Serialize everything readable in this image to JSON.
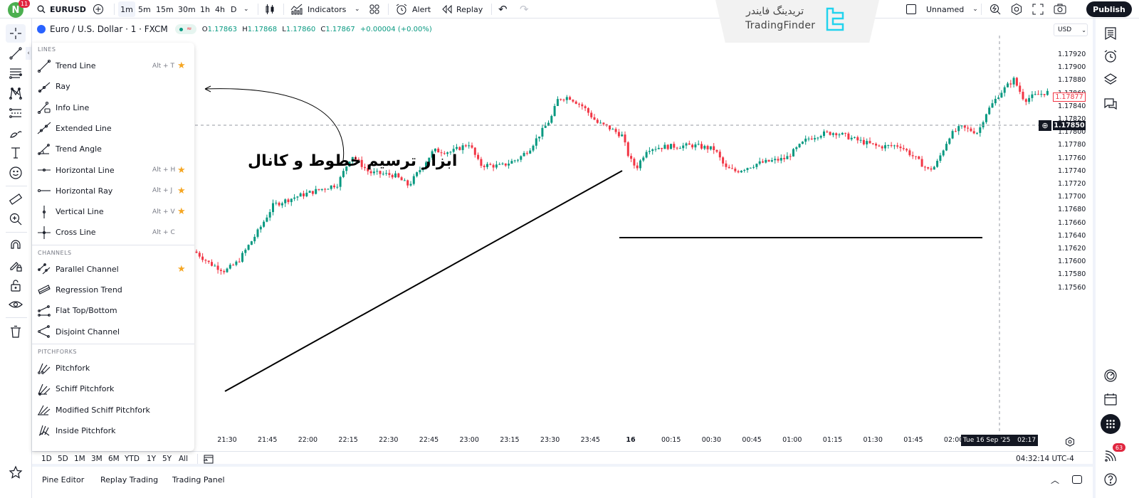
{
  "topbar": {
    "avatar_letter": "N",
    "avatar_badge": "11",
    "symbol": "EURUSD",
    "timeframes": [
      "1m",
      "5m",
      "15m",
      "30m",
      "1h",
      "4h",
      "D"
    ],
    "active_timeframe": "1m",
    "indicators_label": "Indicators",
    "alert_label": "Alert",
    "replay_label": "Replay",
    "layout_name": "Unnamed",
    "publish_label": "Publish"
  },
  "watermark": {
    "text_fa": "تریدینگ فایندر",
    "text_en": "TradingFinder"
  },
  "legend": {
    "symbol_desc": "Euro / U.S. Dollar · 1 · FXCM",
    "open_label": "O",
    "open": "1.17863",
    "high_label": "H",
    "high": "1.17868",
    "low_label": "L",
    "low": "1.17860",
    "close_label": "C",
    "close": "1.17867",
    "change": "+0.00004 (+0.00%)"
  },
  "drawing_menu": {
    "sections": [
      {
        "title": "LINES",
        "items": [
          {
            "label": "Trend Line",
            "shortcut": "Alt + T",
            "starred": true,
            "icon": "trend-line-icon"
          },
          {
            "label": "Ray",
            "shortcut": "",
            "starred": false,
            "icon": "ray-icon"
          },
          {
            "label": "Info Line",
            "shortcut": "",
            "starred": false,
            "icon": "info-line-icon"
          },
          {
            "label": "Extended Line",
            "shortcut": "",
            "starred": false,
            "icon": "extended-line-icon"
          },
          {
            "label": "Trend Angle",
            "shortcut": "",
            "starred": false,
            "icon": "trend-angle-icon"
          },
          {
            "label": "Horizontal Line",
            "shortcut": "Alt + H",
            "starred": true,
            "icon": "horizontal-line-icon"
          },
          {
            "label": "Horizontal Ray",
            "shortcut": "Alt + J",
            "starred": true,
            "icon": "horizontal-ray-icon"
          },
          {
            "label": "Vertical Line",
            "shortcut": "Alt + V",
            "starred": true,
            "icon": "vertical-line-icon"
          },
          {
            "label": "Cross Line",
            "shortcut": "Alt + C",
            "starred": false,
            "icon": "cross-line-icon"
          }
        ]
      },
      {
        "title": "CHANNELS",
        "items": [
          {
            "label": "Parallel Channel",
            "shortcut": "",
            "starred": true,
            "icon": "parallel-channel-icon"
          },
          {
            "label": "Regression Trend",
            "shortcut": "",
            "starred": false,
            "icon": "regression-trend-icon"
          },
          {
            "label": "Flat Top/Bottom",
            "shortcut": "",
            "starred": false,
            "icon": "flat-top-bottom-icon"
          },
          {
            "label": "Disjoint Channel",
            "shortcut": "",
            "starred": false,
            "icon": "disjoint-channel-icon"
          }
        ]
      },
      {
        "title": "PITCHFORKS",
        "items": [
          {
            "label": "Pitchfork",
            "shortcut": "",
            "starred": false,
            "icon": "pitchfork-icon"
          },
          {
            "label": "Schiff Pitchfork",
            "shortcut": "",
            "starred": false,
            "icon": "schiff-pitchfork-icon"
          },
          {
            "label": "Modified Schiff Pitchfork",
            "shortcut": "",
            "starred": false,
            "icon": "modified-schiff-pitchfork-icon"
          },
          {
            "label": "Inside Pitchfork",
            "shortcut": "",
            "starred": false,
            "icon": "inside-pitchfork-icon"
          }
        ]
      }
    ],
    "star_glyph": "★"
  },
  "annotation": {
    "text": "ابزار ترسیم خطوط و کانال"
  },
  "price_axis": {
    "currency": "USD",
    "labels": [
      "1.17920",
      "1.17900",
      "1.17880",
      "1.17860",
      "1.17840",
      "1.17820",
      "1.17800",
      "1.17780",
      "1.17760",
      "1.17740",
      "1.17720",
      "1.17700",
      "1.17680",
      "1.17660",
      "1.17640",
      "1.17620",
      "1.17600",
      "1.17580",
      "1.17560"
    ],
    "last_price": "1.17877",
    "crosshair_price": "1.17850"
  },
  "time_axis": {
    "labels": [
      "21:30",
      "21:45",
      "22:00",
      "22:15",
      "22:30",
      "22:45",
      "23:00",
      "23:15",
      "23:30",
      "23:45",
      "16",
      "00:15",
      "00:30",
      "00:45",
      "01:00",
      "01:15",
      "01:30",
      "01:45",
      "02:00"
    ],
    "crosshair_date": "Tue 16 Sep '25",
    "crosshair_time": "02:17"
  },
  "range_bar": {
    "ranges": [
      "1D",
      "5D",
      "1M",
      "3M",
      "6M",
      "YTD",
      "1Y",
      "5Y",
      "All"
    ],
    "clock": "04:32:14 UTC-4"
  },
  "bottom_tabs": [
    "Pine Editor",
    "Replay Trading",
    "Trading Panel"
  ],
  "right_bar": {
    "notifications_badge": "63"
  },
  "colors": {
    "up": "#089981",
    "down": "#f23645",
    "accent": "#2962ff",
    "dark": "#131722"
  }
}
